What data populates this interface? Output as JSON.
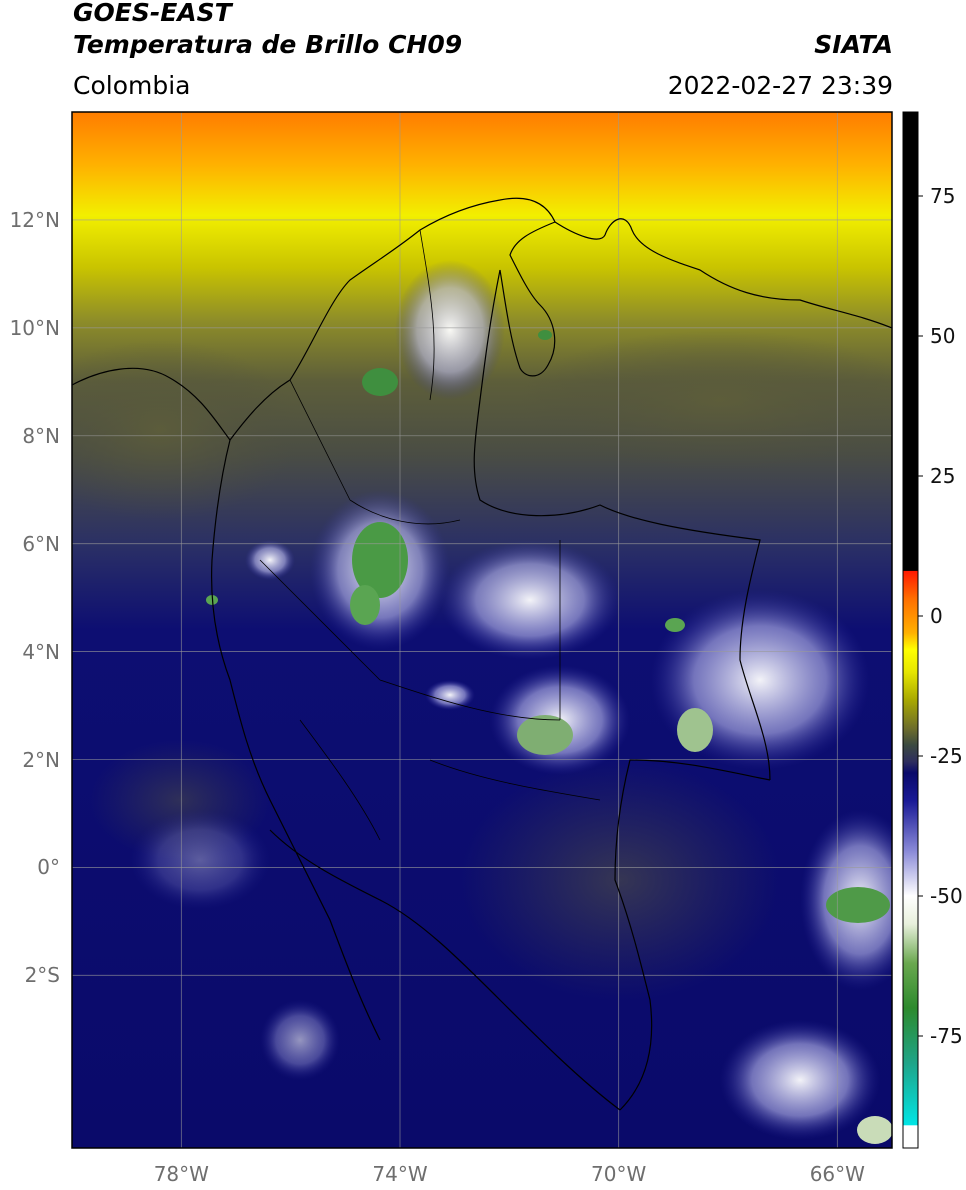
{
  "header": {
    "line1": "GOES-EAST",
    "line2": "Temperatura de Brillo CH09",
    "credit": "SIATA",
    "region": "Colombia",
    "timestamp": "2022-02-27 23:39"
  },
  "map": {
    "extent": {
      "lon_min": -80.0,
      "lon_max": -65.0,
      "lat_min": -5.2,
      "lat_max": 14.0
    },
    "lat_ticks": [
      {
        "value": 12,
        "label": "12°N"
      },
      {
        "value": 10,
        "label": "10°N"
      },
      {
        "value": 8,
        "label": "8°N"
      },
      {
        "value": 6,
        "label": "6°N"
      },
      {
        "value": 4,
        "label": "4°N"
      },
      {
        "value": 2,
        "label": "2°N"
      },
      {
        "value": 0,
        "label": "0°"
      },
      {
        "value": -2,
        "label": "2°S"
      }
    ],
    "lon_ticks": [
      {
        "value": -78,
        "label": "78°W"
      },
      {
        "value": -74,
        "label": "74°W"
      },
      {
        "value": -70,
        "label": "70°W"
      },
      {
        "value": -66,
        "label": "66°W"
      }
    ],
    "gridlines": "on"
  },
  "colorbar": {
    "min": -95,
    "max": 90,
    "ticks": [
      {
        "value": 75,
        "label": "75"
      },
      {
        "value": 50,
        "label": "50"
      },
      {
        "value": 25,
        "label": "25"
      },
      {
        "value": 0,
        "label": "0"
      },
      {
        "value": -25,
        "label": "-25"
      },
      {
        "value": -50,
        "label": "-50"
      },
      {
        "value": -75,
        "label": "-75"
      }
    ],
    "stops": [
      {
        "value": -95,
        "color": "#ffffff"
      },
      {
        "value": -91,
        "color": "#ffffff"
      },
      {
        "value": -90.9,
        "color": "#00e5e5"
      },
      {
        "value": -80,
        "color": "#1fa58a"
      },
      {
        "value": -70,
        "color": "#2d8a2d"
      },
      {
        "value": -62,
        "color": "#6aa84f"
      },
      {
        "value": -55,
        "color": "#e8f0dc"
      },
      {
        "value": -50,
        "color": "#ffffff"
      },
      {
        "value": -42,
        "color": "#8a8ad8"
      },
      {
        "value": -33,
        "color": "#1a1a96"
      },
      {
        "value": -28,
        "color": "#0a0a6a"
      },
      {
        "value": -26,
        "color": "#2e2e5e"
      },
      {
        "value": -23,
        "color": "#3c4a40"
      },
      {
        "value": -20,
        "color": "#6e6e2a"
      },
      {
        "value": -15,
        "color": "#a8a800"
      },
      {
        "value": -10,
        "color": "#e6e600"
      },
      {
        "value": -6,
        "color": "#ffff00"
      },
      {
        "value": -3,
        "color": "#ffb000"
      },
      {
        "value": 3,
        "color": "#ff7000"
      },
      {
        "value": 8,
        "color": "#ff1a00"
      },
      {
        "value": 8.1,
        "color": "#000000"
      },
      {
        "value": 90,
        "color": "#000000"
      }
    ]
  },
  "colors": {
    "cold_deep_blue": "#0a0a6a",
    "cloud_white": "#ffffff",
    "very_cold_green": "#3f8f3f",
    "warm_yellow": "#ffff00",
    "warm_orange": "#ff8000",
    "dry_olive": "#5a5a38",
    "border_black": "#000000"
  }
}
